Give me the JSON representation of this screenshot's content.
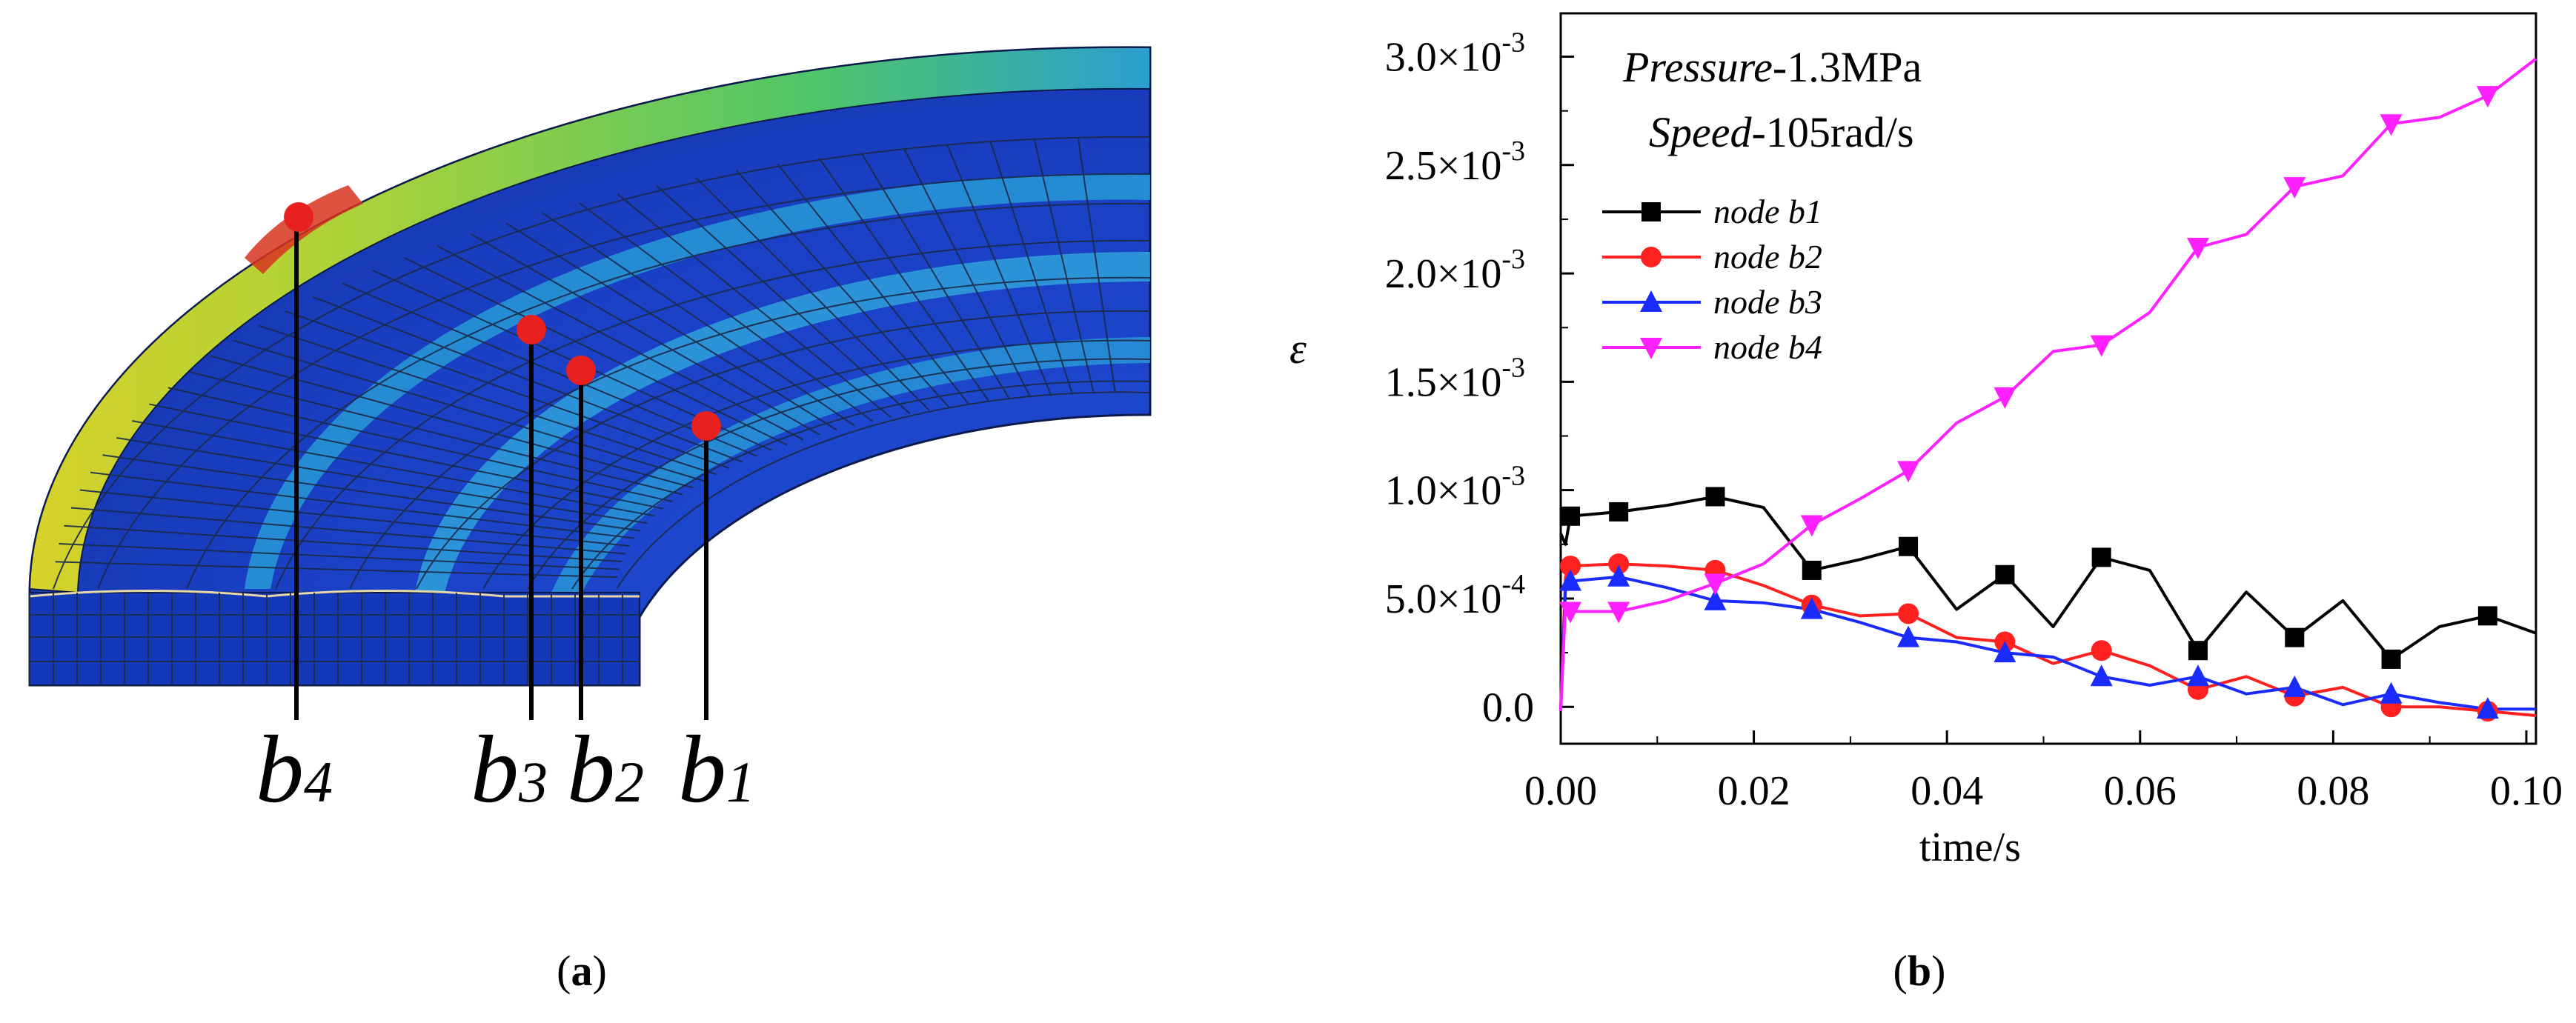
{
  "panels": {
    "a": {
      "label_open": "(",
      "letter": "a",
      "label_close": ")"
    },
    "b": {
      "label_open": "(",
      "letter": "b",
      "label_close": ")"
    }
  },
  "fea_model": {
    "node_labels": [
      {
        "id": "b4",
        "letter": "b",
        "sub": "4"
      },
      {
        "id": "b3",
        "letter": "b",
        "sub": "3"
      },
      {
        "id": "b2",
        "letter": "b",
        "sub": "2"
      },
      {
        "id": "b1",
        "letter": "b",
        "sub": "1"
      }
    ],
    "colors": {
      "marker": "#e8211e",
      "mesh": "#1b2a4a"
    }
  },
  "annotation": {
    "pressure_label": "Pressure",
    "pressure_value": "-1.3MPa",
    "speed_label": "Speed",
    "speed_value": "-105rad/s"
  },
  "chart_data": {
    "type": "line",
    "title": "",
    "xlabel": "time/s",
    "ylabel": "ε",
    "xlim": [
      0,
      0.101
    ],
    "ylim": [
      -0.00017,
      0.0032
    ],
    "xticks": [
      {
        "value": 0.0,
        "label": "0.00"
      },
      {
        "value": 0.02,
        "label": "0.02"
      },
      {
        "value": 0.04,
        "label": "0.04"
      },
      {
        "value": 0.06,
        "label": "0.06"
      },
      {
        "value": 0.08,
        "label": "0.08"
      },
      {
        "value": 0.1,
        "label": "0.10"
      }
    ],
    "yticks": [
      {
        "value": 0.0,
        "mantissa": "0.0",
        "exp": ""
      },
      {
        "value": 0.0005,
        "mantissa": "5.0×10",
        "exp": "-4"
      },
      {
        "value": 0.001,
        "mantissa": "1.0×10",
        "exp": "-3"
      },
      {
        "value": 0.0015,
        "mantissa": "1.5×10",
        "exp": "-3"
      },
      {
        "value": 0.002,
        "mantissa": "2.0×10",
        "exp": "-3"
      },
      {
        "value": 0.0025,
        "mantissa": "2.5×10",
        "exp": "-3"
      },
      {
        "value": 0.003,
        "mantissa": "3.0×10",
        "exp": "-3"
      }
    ],
    "legend_position": "upper-left",
    "series": [
      {
        "name": "node b1",
        "color": "#000000",
        "marker": "square",
        "x": [
          0,
          0.0005,
          0.001,
          0.006,
          0.011,
          0.016,
          0.021,
          0.026,
          0.031,
          0.036,
          0.041,
          0.046,
          0.051,
          0.056,
          0.061,
          0.066,
          0.071,
          0.076,
          0.081,
          0.086,
          0.091,
          0.096,
          0.101
        ],
        "y": [
          0.0008,
          0.00075,
          0.00088,
          0.0009,
          0.00093,
          0.00097,
          0.00092,
          0.00063,
          0.00068,
          0.00074,
          0.00045,
          0.00061,
          0.00037,
          0.00069,
          0.00063,
          0.00026,
          0.00053,
          0.00032,
          0.00049,
          0.00022,
          0.00037,
          0.00042,
          0.00034
        ],
        "markers_x": [
          0.001,
          0.006,
          0.016,
          0.026,
          0.036,
          0.046,
          0.056,
          0.066,
          0.076,
          0.086,
          0.096
        ]
      },
      {
        "name": "node b2",
        "color": "#ff2020",
        "marker": "circle",
        "x": [
          0,
          0.0005,
          0.001,
          0.006,
          0.011,
          0.016,
          0.021,
          0.026,
          0.031,
          0.036,
          0.041,
          0.046,
          0.051,
          0.056,
          0.061,
          0.066,
          0.071,
          0.076,
          0.081,
          0.086,
          0.091,
          0.096,
          0.101
        ],
        "y": [
          0.0,
          0.0006,
          0.00065,
          0.00066,
          0.00065,
          0.00063,
          0.00056,
          0.00047,
          0.00042,
          0.00043,
          0.00032,
          0.0003,
          0.0002,
          0.00026,
          0.00019,
          8e-05,
          0.00014,
          5e-05,
          9e-05,
          0.0,
          0.0,
          -2e-05,
          -4e-05
        ],
        "markers_x": [
          0.001,
          0.006,
          0.016,
          0.026,
          0.036,
          0.046,
          0.056,
          0.066,
          0.076,
          0.086,
          0.096
        ]
      },
      {
        "name": "node b3",
        "color": "#1a2bff",
        "marker": "triangle-up",
        "x": [
          0,
          0.0005,
          0.001,
          0.006,
          0.011,
          0.016,
          0.021,
          0.026,
          0.031,
          0.036,
          0.041,
          0.046,
          0.051,
          0.056,
          0.061,
          0.066,
          0.071,
          0.076,
          0.081,
          0.086,
          0.091,
          0.096,
          0.101
        ],
        "y": [
          -2e-05,
          0.00055,
          0.00058,
          0.0006,
          0.00055,
          0.00049,
          0.00048,
          0.00045,
          0.00039,
          0.00032,
          0.0003,
          0.00025,
          0.00023,
          0.00014,
          0.0001,
          0.00014,
          6e-05,
          9e-05,
          1e-05,
          6e-05,
          2e-05,
          -1e-05,
          -1e-05
        ],
        "markers_x": [
          0.001,
          0.006,
          0.016,
          0.026,
          0.036,
          0.046,
          0.056,
          0.066,
          0.076,
          0.086,
          0.096
        ]
      },
      {
        "name": "node b4",
        "color": "#ff20ff",
        "marker": "triangle-down",
        "x": [
          0,
          0.0005,
          0.001,
          0.006,
          0.011,
          0.016,
          0.021,
          0.026,
          0.031,
          0.036,
          0.041,
          0.046,
          0.051,
          0.056,
          0.061,
          0.066,
          0.071,
          0.076,
          0.081,
          0.086,
          0.091,
          0.096,
          0.101
        ],
        "y": [
          -2e-05,
          0.00048,
          0.00044,
          0.00044,
          0.00049,
          0.00057,
          0.00066,
          0.00084,
          0.00096,
          0.00109,
          0.00131,
          0.00143,
          0.00164,
          0.00167,
          0.00182,
          0.00212,
          0.00218,
          0.0024,
          0.00245,
          0.00269,
          0.00272,
          0.00282,
          0.00299
        ],
        "markers_x": [
          0.001,
          0.006,
          0.016,
          0.026,
          0.036,
          0.046,
          0.056,
          0.066,
          0.076,
          0.086,
          0.096
        ]
      }
    ]
  }
}
